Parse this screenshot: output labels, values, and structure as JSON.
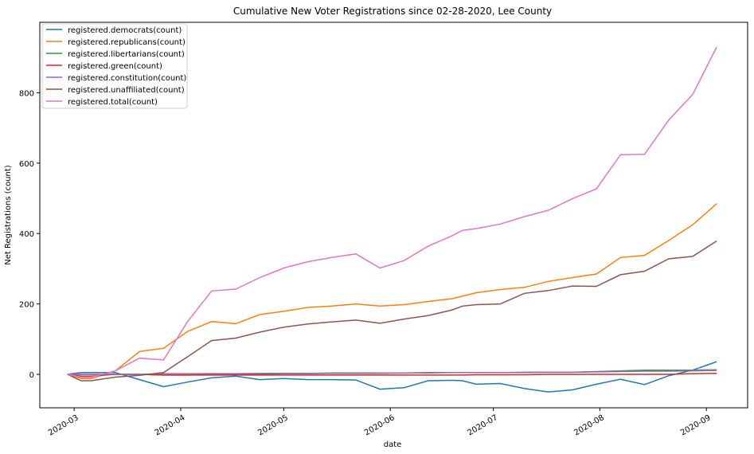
{
  "chart_data": {
    "type": "line",
    "title": "Cumulative New Voter Registrations since 02-28-2020, Lee County",
    "xlabel": "date",
    "ylabel": "Net Registrations (count)",
    "xlim": [
      "2020-02-20",
      "2020-09-13"
    ],
    "ylim": [
      -95,
      1000
    ],
    "yticks": [
      0,
      200,
      400,
      600,
      800
    ],
    "xticks": [
      {
        "date": "2020-03-01",
        "label": "2020-03"
      },
      {
        "date": "2020-04-01",
        "label": "2020-04"
      },
      {
        "date": "2020-05-01",
        "label": "2020-05"
      },
      {
        "date": "2020-06-01",
        "label": "2020-06"
      },
      {
        "date": "2020-07-01",
        "label": "2020-07"
      },
      {
        "date": "2020-08-01",
        "label": "2020-08"
      },
      {
        "date": "2020-09-01",
        "label": "2020-09"
      }
    ],
    "grid": false,
    "legend_position": "top-left",
    "x": [
      "2020-02-28",
      "2020-03-03",
      "2020-03-06",
      "2020-03-13",
      "2020-03-20",
      "2020-03-27",
      "2020-04-03",
      "2020-04-10",
      "2020-04-17",
      "2020-04-24",
      "2020-05-01",
      "2020-05-08",
      "2020-05-15",
      "2020-05-22",
      "2020-05-29",
      "2020-06-05",
      "2020-06-12",
      "2020-06-19",
      "2020-06-22",
      "2020-06-26",
      "2020-07-03",
      "2020-07-10",
      "2020-07-17",
      "2020-07-24",
      "2020-07-31",
      "2020-08-07",
      "2020-08-14",
      "2020-08-21",
      "2020-08-28",
      "2020-09-04"
    ],
    "series": [
      {
        "name": "registered.democrats(count)",
        "color": "#1f77b4",
        "values": [
          0,
          5,
          5,
          5,
          -15,
          -35,
          -22,
          -10,
          -5,
          -15,
          -12,
          -15,
          -15,
          -16,
          -42,
          -38,
          -18,
          -17,
          -18,
          -28,
          -26,
          -40,
          -50,
          -44,
          -28,
          -14,
          -29,
          -4,
          12,
          36
        ]
      },
      {
        "name": "registered.republicans(count)",
        "color": "#ff7f0e",
        "values": [
          0,
          -12,
          -12,
          10,
          65,
          74,
          122,
          150,
          144,
          170,
          179,
          190,
          194,
          200,
          194,
          198,
          207,
          215,
          222,
          232,
          241,
          247,
          264,
          275,
          285,
          332,
          338,
          380,
          425,
          485
        ]
      },
      {
        "name": "registered.libertarians(count)",
        "color": "#2ca02c",
        "values": [
          0,
          0,
          0,
          0,
          0,
          -2,
          -2,
          0,
          0,
          0,
          2,
          2,
          3,
          3,
          3,
          4,
          4,
          5,
          5,
          5,
          5,
          6,
          6,
          6,
          8,
          10,
          12,
          12,
          12,
          13
        ]
      },
      {
        "name": "registered.green(count)",
        "color": "#d62728",
        "values": [
          0,
          -5,
          -5,
          0,
          0,
          -2,
          -2,
          -2,
          -2,
          -2,
          -2,
          -2,
          -2,
          -2,
          -2,
          -2,
          -2,
          -2,
          -2,
          -1,
          -1,
          -1,
          0,
          0,
          0,
          0,
          0,
          0,
          2,
          3
        ]
      },
      {
        "name": "registered.constitution(count)",
        "color": "#9467bd",
        "values": [
          0,
          0,
          0,
          0,
          0,
          2,
          2,
          2,
          2,
          3,
          3,
          3,
          4,
          4,
          4,
          4,
          5,
          5,
          5,
          5,
          5,
          5,
          6,
          6,
          7,
          8,
          9,
          9,
          10,
          11
        ]
      },
      {
        "name": "registered.unaffiliated(count)",
        "color": "#8c564b",
        "values": [
          0,
          -18,
          -18,
          -8,
          -3,
          5,
          50,
          96,
          103,
          120,
          134,
          143,
          149,
          154,
          145,
          157,
          167,
          183,
          194,
          198,
          200,
          230,
          238,
          251,
          250,
          283,
          293,
          328,
          335,
          379
        ]
      },
      {
        "name": "registered.total(count)",
        "color": "#e377c2",
        "values": [
          0,
          -8,
          -8,
          10,
          46,
          41,
          150,
          237,
          242,
          275,
          302,
          320,
          332,
          342,
          302,
          323,
          364,
          394,
          409,
          414,
          427,
          448,
          466,
          499,
          527,
          624,
          625,
          722,
          795,
          930
        ]
      }
    ]
  }
}
